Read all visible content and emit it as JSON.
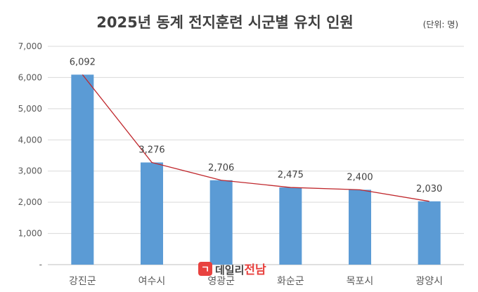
{
  "chart_data": {
    "type": "bar",
    "title": "2025년 동계 전지훈련 시군별 유치 인원",
    "unit_note": "(단위: 명)",
    "categories": [
      "강진군",
      "여수시",
      "영광군",
      "화순군",
      "목포시",
      "광양시"
    ],
    "series": [
      {
        "values": [
          6092,
          3276,
          2706,
          2475,
          2400,
          2030
        ]
      }
    ],
    "data_labels": [
      "6,092",
      "3,276",
      "2,706",
      "2,475",
      "2,400",
      "2,030"
    ],
    "y_ticks": [
      {
        "value": 0,
        "label": "-"
      },
      {
        "value": 1000,
        "label": "1,000"
      },
      {
        "value": 2000,
        "label": "2,000"
      },
      {
        "value": 3000,
        "label": "3,000"
      },
      {
        "value": 4000,
        "label": "4,000"
      },
      {
        "value": 5000,
        "label": "5,000"
      },
      {
        "value": 6000,
        "label": "6,000"
      },
      {
        "value": 7000,
        "label": "7,000"
      }
    ],
    "ylim": [
      0,
      7000
    ],
    "grid": true,
    "trend_line": true,
    "colors": {
      "bar": "#5b9bd5",
      "trend": "#c0282d",
      "grid": "#d9d9d9",
      "text": "#595959"
    }
  },
  "watermark": {
    "logo_char": "ㄱ",
    "text_main": "데일리",
    "text_accent": "전남"
  }
}
